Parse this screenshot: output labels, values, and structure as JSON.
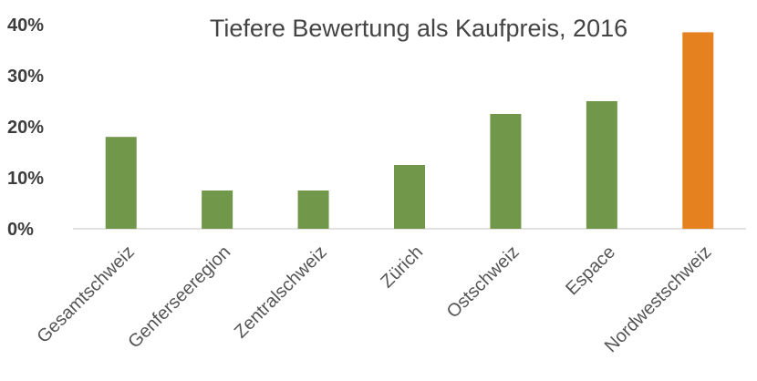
{
  "chart_data": {
    "type": "bar",
    "title": "Tiefere Bewertung als Kaufpreis, 2016",
    "xlabel": "",
    "ylabel": "",
    "categories": [
      "Gesamtschweiz",
      "Genferseeregion",
      "Zentralschweiz",
      "Zürich",
      "Ostschweiz",
      "Espace",
      "Nordwestschweiz"
    ],
    "values": [
      18,
      7.5,
      7.5,
      12.5,
      22.5,
      25,
      38.5
    ],
    "unit": "%",
    "ylim": [
      0,
      40
    ],
    "yticks": [
      0,
      10,
      20,
      30,
      40
    ],
    "ytick_labels": [
      "0%",
      "10%",
      "20%",
      "30%",
      "40%"
    ],
    "grid": false,
    "legend": "none",
    "colors": {
      "default": "#70974a",
      "highlight": "#e5821f",
      "highlight_category": "Nordwestschweiz"
    }
  }
}
